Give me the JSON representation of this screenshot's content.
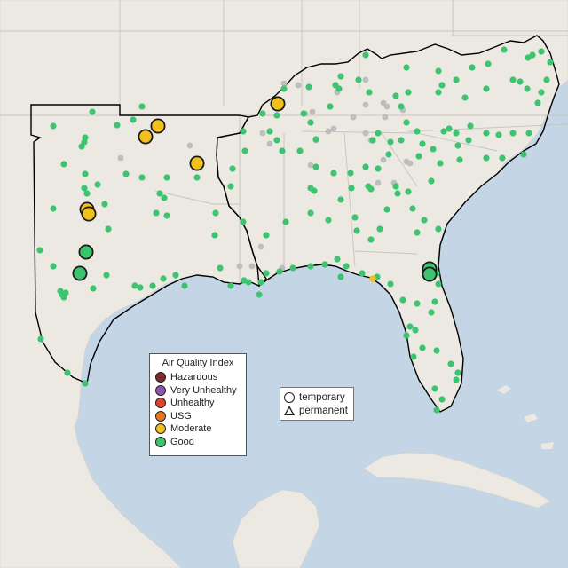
{
  "legend": {
    "title": "Air Quality Index",
    "categories": [
      {
        "label": "Hazardous",
        "color": "#7e2a2a"
      },
      {
        "label": "Very Unhealthy",
        "color": "#8e55b0"
      },
      {
        "label": "Unhealthy",
        "color": "#e04030"
      },
      {
        "label": "USG",
        "color": "#e07a1f"
      },
      {
        "label": "Moderate",
        "color": "#f2c01e"
      },
      {
        "label": "Good",
        "color": "#3cc46f"
      }
    ]
  },
  "monitor_types": {
    "temporary_label": "temporary",
    "permanent_label": "permanent"
  },
  "colors": {
    "ocean": "#c4d5e6",
    "land": "#ece8e2",
    "no_data_sensor": "#bdbdbd",
    "region_outline": "#000000"
  },
  "monitors": {
    "large_moderate_count": 6,
    "large_good_count": 4,
    "small_moderate_count": 1
  }
}
